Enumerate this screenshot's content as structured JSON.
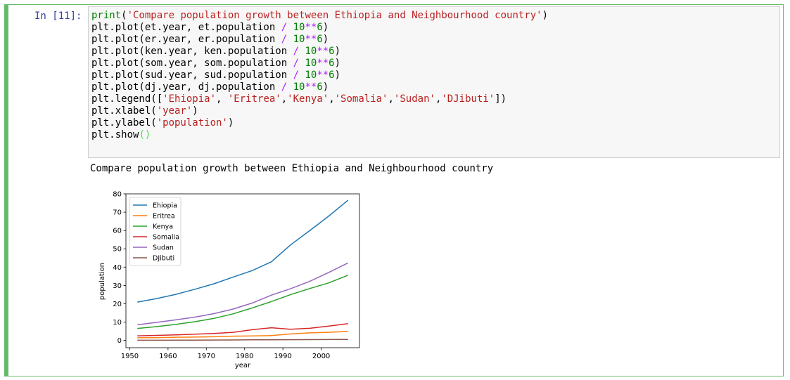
{
  "cell": {
    "prompt": "In [11]:",
    "code_lines": [
      "print('Compare population growth between Ethiopia and Neighbourhood country')",
      "plt.plot(et.year, et.population / 10**6)",
      "plt.plot(er.year, er.population / 10**6)",
      "plt.plot(ken.year, ken.population / 10**6)",
      "plt.plot(som.year, som.population / 10**6)",
      "plt.plot(sud.year, sud.population / 10**6)",
      "plt.plot(dj.year, dj.population / 10**6)",
      "plt.legend(['Ehiopia', 'Eritrea','Kenya','Somalia','Sudan','DJibuti'])",
      "plt.xlabel('year')",
      "plt.ylabel('population')",
      "plt.show()"
    ],
    "output_text": "Compare population growth between Ethiopia and Neighbourhood country"
  },
  "chart_data": {
    "type": "line",
    "xlabel": "year",
    "ylabel": "population",
    "xlim": [
      1949,
      2010
    ],
    "ylim": [
      -4,
      80
    ],
    "xticks": [
      1950,
      1960,
      1970,
      1980,
      1990,
      2000
    ],
    "yticks": [
      0,
      10,
      20,
      30,
      40,
      50,
      60,
      70,
      80
    ],
    "legend_position": "upper-left",
    "x": [
      1952,
      1957,
      1962,
      1967,
      1972,
      1977,
      1982,
      1987,
      1992,
      1997,
      2002,
      2007
    ],
    "series": [
      {
        "name": "Ehiopia",
        "color": "#1f77b4",
        "values": [
          20.9,
          22.8,
          25.1,
          27.9,
          30.9,
          34.6,
          38.1,
          42.9,
          52.1,
          59.9,
          67.9,
          76.5
        ]
      },
      {
        "name": "Eritrea",
        "color": "#ff7f0e",
        "values": [
          1.4,
          1.5,
          1.7,
          1.8,
          2.0,
          2.3,
          2.4,
          2.6,
          3.5,
          4.1,
          4.4,
          4.9
        ]
      },
      {
        "name": "Kenya",
        "color": "#2ca02c",
        "values": [
          6.5,
          7.5,
          8.7,
          10.2,
          12.0,
          14.5,
          17.7,
          21.2,
          25.0,
          28.3,
          31.4,
          35.6
        ]
      },
      {
        "name": "Somalia",
        "color": "#d62728",
        "values": [
          2.5,
          2.7,
          3.0,
          3.4,
          3.8,
          4.4,
          5.8,
          6.9,
          6.1,
          6.6,
          7.8,
          9.1
        ]
      },
      {
        "name": "Sudan",
        "color": "#9467bd",
        "values": [
          8.5,
          9.8,
          11.2,
          12.7,
          14.6,
          17.1,
          20.4,
          24.7,
          28.2,
          32.2,
          37.1,
          42.3
        ]
      },
      {
        "name": "DJibuti",
        "color": "#8c564b",
        "values": [
          0.06,
          0.08,
          0.09,
          0.13,
          0.18,
          0.23,
          0.31,
          0.35,
          0.38,
          0.42,
          0.45,
          0.5
        ]
      }
    ]
  }
}
